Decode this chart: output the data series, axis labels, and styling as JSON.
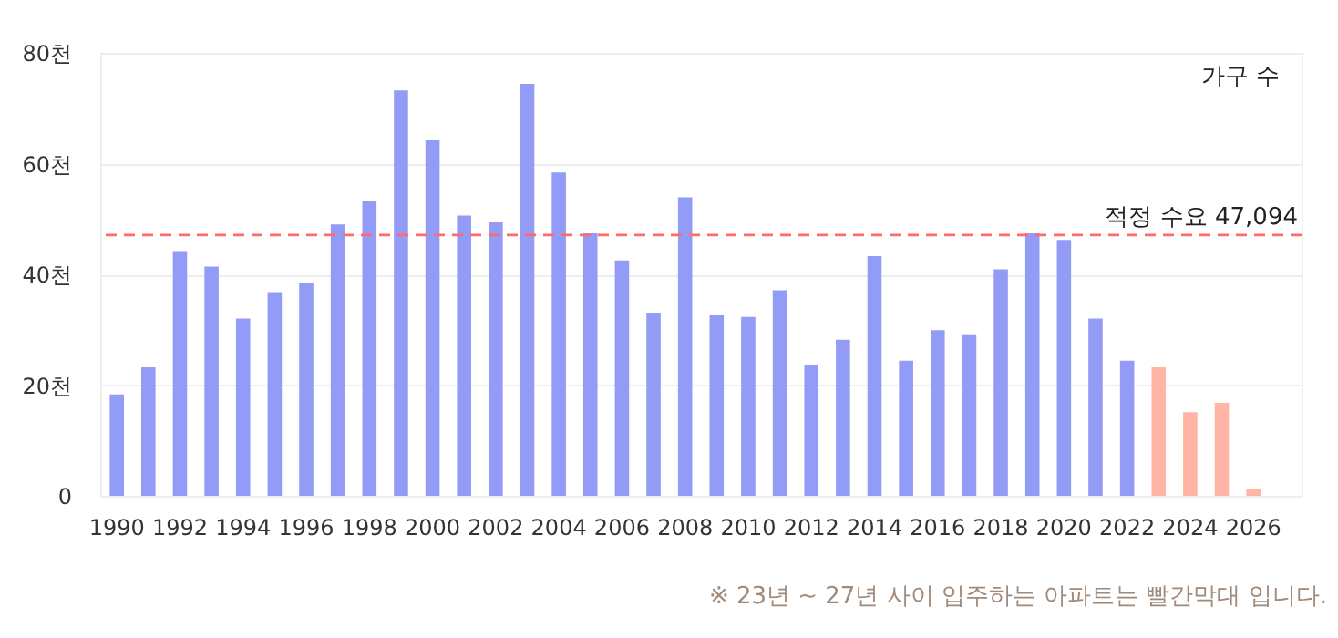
{
  "chart_data": {
    "type": "bar",
    "ylabel": "가구 수",
    "categories": [
      "1990",
      null,
      "1992",
      null,
      "1994",
      null,
      "1996",
      null,
      "1998",
      null,
      "2000",
      null,
      "2002",
      null,
      "2004",
      null,
      "2006",
      null,
      "2008",
      null,
      "2010",
      null,
      "2012",
      null,
      "2014",
      null,
      "2016",
      null,
      "2018",
      null,
      "2020",
      null,
      "2022",
      null,
      "2024",
      null,
      "2026",
      null
    ],
    "values": [
      18.3,
      23.2,
      44.2,
      41.4,
      32.0,
      36.8,
      38.4,
      49.0,
      53.2,
      73.2,
      64.2,
      50.6,
      49.4,
      74.4,
      58.4,
      47.4,
      42.5,
      33.1,
      53.9,
      32.6,
      32.3,
      37.1,
      23.7,
      28.2,
      43.3,
      24.4,
      29.9,
      29.0,
      40.9,
      47.4,
      46.2,
      32.0,
      24.4,
      23.2,
      15.1,
      16.8,
      1.2,
      null
    ],
    "colors": [
      "#8c96f5",
      "#8c96f5",
      "#8c96f5",
      "#8c96f5",
      "#8c96f5",
      "#8c96f5",
      "#8c96f5",
      "#8c96f5",
      "#8c96f5",
      "#8c96f5",
      "#8c96f5",
      "#8c96f5",
      "#8c96f5",
      "#8c96f5",
      "#8c96f5",
      "#8c96f5",
      "#8c96f5",
      "#8c96f5",
      "#8c96f5",
      "#8c96f5",
      "#8c96f5",
      "#8c96f5",
      "#8c96f5",
      "#8c96f5",
      "#8c96f5",
      "#8c96f5",
      "#8c96f5",
      "#8c96f5",
      "#8c96f5",
      "#8c96f5",
      "#8c96f5",
      "#8c96f5",
      "#8c96f5",
      "#ffb0a0",
      "#ffb0a0",
      "#ffb0a0",
      "#ffb0a0",
      "#ffb0a0"
    ],
    "ylim": [
      0,
      80
    ],
    "yticks": [
      0,
      {
        "value": 20,
        "label": "20천"
      },
      {
        "value": 40,
        "label": "40천"
      },
      {
        "value": 60,
        "label": "60천"
      },
      {
        "value": 80,
        "label": "80천"
      }
    ],
    "ref_lines": [
      {
        "axis": "y",
        "value": 47.094,
        "label": "적정 수요 47,094",
        "color": "#ff6b6b",
        "line_style": "dashed"
      }
    ],
    "grid": "y",
    "annotations": [
      "※ 23년 ~ 27년 사이 입주하는 아파트는 빨간막대 입니다."
    ]
  }
}
